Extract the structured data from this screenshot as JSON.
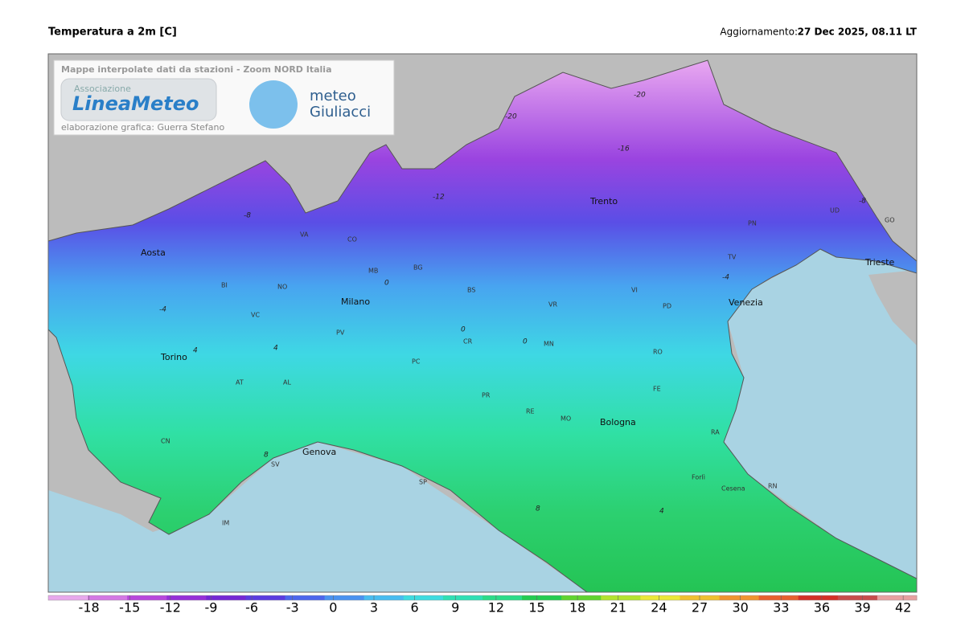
{
  "header": {
    "title": "Temperatura a 2m [C]",
    "update_label": "Aggiornamento:",
    "update_time": "27 Dec 2025, 08.11 LT"
  },
  "overlay": {
    "subtitle": "Mappe interpolate dati da stazioni - Zoom NORD Italia",
    "logo1_top": "Associazione",
    "logo1_main": "LineaMeteo",
    "credit": "elaborazione grafica: Guerra Stefano",
    "logo2_top": "meteo",
    "logo2_main": "Giuliacci"
  },
  "map": {
    "cities": [
      "Aosta",
      "Torino",
      "Milano",
      "Genova",
      "Bologna",
      "Venezia",
      "Trento",
      "Trieste"
    ],
    "provinces": [
      "VA",
      "CO",
      "BI",
      "NO",
      "MB",
      "BG",
      "BS",
      "VR",
      "VI",
      "TV",
      "PN",
      "UD",
      "GO",
      "VC",
      "PV",
      "CR",
      "MN",
      "PD",
      "RO",
      "AT",
      "AL",
      "PC",
      "PR",
      "RE",
      "MO",
      "FE",
      "RA",
      "CN",
      "SV",
      "SP",
      "Forlì",
      "Cesena",
      "RN",
      "IM"
    ],
    "contour_labels": [
      "-20",
      "-20",
      "-16",
      "-12",
      "-8",
      "-4",
      "0",
      "0",
      "0",
      "4",
      "4",
      "8",
      "8",
      "4",
      "-8",
      "-4"
    ]
  },
  "colorbar": {
    "range": [
      -21,
      43
    ],
    "ticks": [
      -18,
      -15,
      -12,
      -9,
      -6,
      -3,
      0,
      3,
      6,
      9,
      12,
      15,
      18,
      21,
      24,
      27,
      30,
      33,
      36,
      39,
      42
    ],
    "colors": [
      "#e8a8ec",
      "#d478e4",
      "#b848dc",
      "#9630d8",
      "#7428d4",
      "#5a3ce0",
      "#4c66ec",
      "#4a92f0",
      "#48bcf0",
      "#3edce0",
      "#30e0b4",
      "#2cdc88",
      "#24cc50",
      "#60d430",
      "#b4e430",
      "#ece838",
      "#f0c030",
      "#f09430",
      "#e86030",
      "#d43028",
      "#c84c4c",
      "#e8a0a0"
    ]
  }
}
